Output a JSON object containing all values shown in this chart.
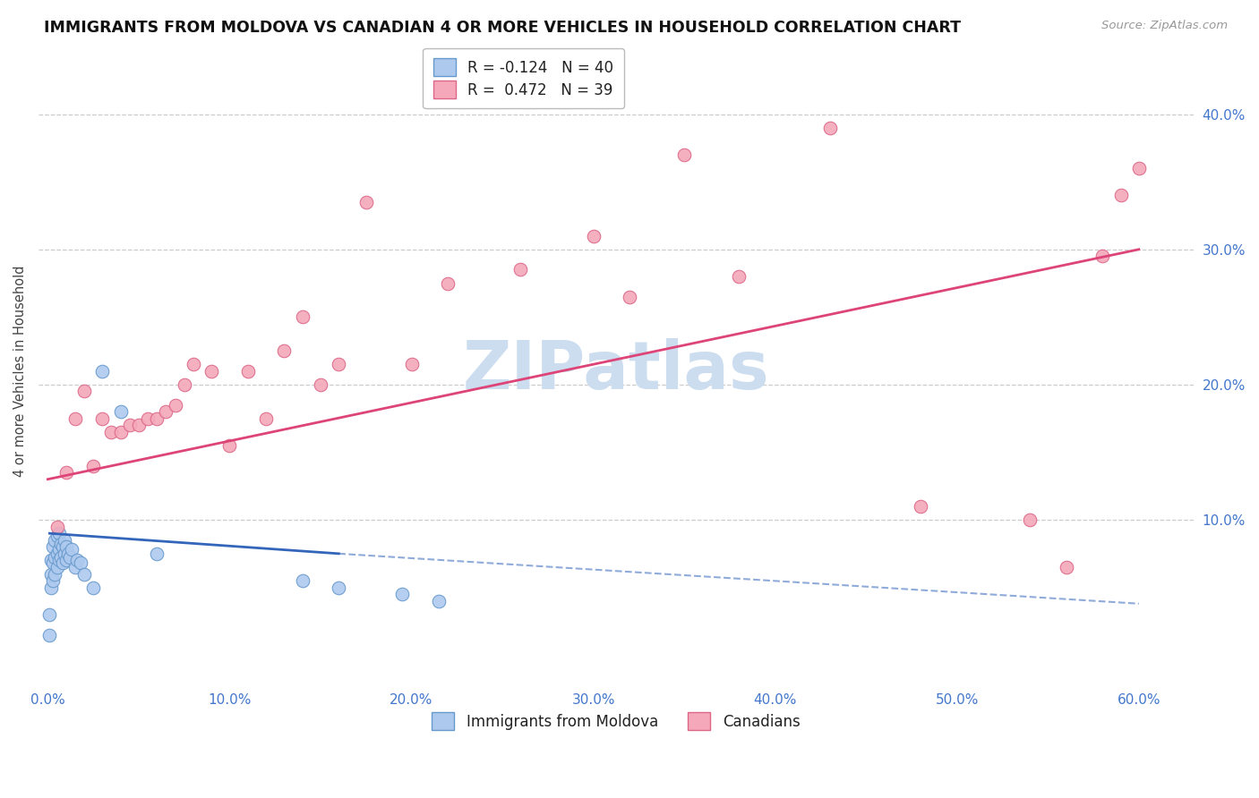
{
  "title": "IMMIGRANTS FROM MOLDOVA VS CANADIAN 4 OR MORE VEHICLES IN HOUSEHOLD CORRELATION CHART",
  "source": "Source: ZipAtlas.com",
  "ylabel": "4 or more Vehicles in Household",
  "xlim": [
    -0.005,
    0.63
  ],
  "ylim": [
    -0.025,
    0.445
  ],
  "xtick_vals": [
    0.0,
    0.1,
    0.2,
    0.3,
    0.4,
    0.5,
    0.6
  ],
  "xtick_labels": [
    "0.0%",
    "10.0%",
    "20.0%",
    "30.0%",
    "40.0%",
    "50.0%",
    "60.0%"
  ],
  "ytick_vals": [
    0.1,
    0.2,
    0.3,
    0.4
  ],
  "ytick_labels": [
    "10.0%",
    "20.0%",
    "30.0%",
    "40.0%"
  ],
  "blue_R": "-0.124",
  "blue_N": "40",
  "pink_R": "0.472",
  "pink_N": "39",
  "blue_color": "#aec9ee",
  "pink_color": "#f4a8ba",
  "blue_edge_color": "#6699cc",
  "pink_edge_color": "#dd6688",
  "blue_line_color": "#3366bb",
  "pink_line_color": "#dd4477",
  "watermark": "ZIPatlas",
  "watermark_color": "#ccddf0",
  "blue_scatter_x": [
    0.001,
    0.001,
    0.002,
    0.002,
    0.002,
    0.003,
    0.003,
    0.003,
    0.004,
    0.004,
    0.004,
    0.005,
    0.005,
    0.005,
    0.006,
    0.006,
    0.006,
    0.007,
    0.007,
    0.008,
    0.008,
    0.009,
    0.009,
    0.01,
    0.01,
    0.011,
    0.012,
    0.013,
    0.015,
    0.016,
    0.018,
    0.02,
    0.025,
    0.03,
    0.04,
    0.06,
    0.14,
    0.16,
    0.195,
    0.215
  ],
  "blue_scatter_y": [
    0.015,
    0.03,
    0.05,
    0.06,
    0.07,
    0.055,
    0.068,
    0.08,
    0.06,
    0.072,
    0.085,
    0.065,
    0.075,
    0.088,
    0.07,
    0.078,
    0.09,
    0.072,
    0.082,
    0.068,
    0.08,
    0.075,
    0.085,
    0.07,
    0.08,
    0.075,
    0.072,
    0.078,
    0.065,
    0.07,
    0.068,
    0.06,
    0.05,
    0.21,
    0.18,
    0.075,
    0.055,
    0.05,
    0.045,
    0.04
  ],
  "pink_scatter_x": [
    0.005,
    0.01,
    0.015,
    0.02,
    0.025,
    0.03,
    0.035,
    0.04,
    0.045,
    0.05,
    0.055,
    0.06,
    0.065,
    0.07,
    0.075,
    0.08,
    0.09,
    0.1,
    0.11,
    0.12,
    0.13,
    0.14,
    0.15,
    0.16,
    0.175,
    0.2,
    0.22,
    0.26,
    0.3,
    0.32,
    0.35,
    0.38,
    0.43,
    0.48,
    0.54,
    0.56,
    0.58,
    0.59,
    0.6
  ],
  "pink_scatter_y": [
    0.095,
    0.135,
    0.175,
    0.195,
    0.14,
    0.175,
    0.165,
    0.165,
    0.17,
    0.17,
    0.175,
    0.175,
    0.18,
    0.185,
    0.2,
    0.215,
    0.21,
    0.155,
    0.21,
    0.175,
    0.225,
    0.25,
    0.2,
    0.215,
    0.335,
    0.215,
    0.275,
    0.285,
    0.31,
    0.265,
    0.37,
    0.28,
    0.39,
    0.11,
    0.1,
    0.065,
    0.295,
    0.34,
    0.36
  ],
  "pink_line_x0": 0.0,
  "pink_line_y0": 0.13,
  "pink_line_x1": 0.6,
  "pink_line_y1": 0.3,
  "blue_line_solid_x0": 0.001,
  "blue_line_solid_x1": 0.16,
  "blue_line_y0": 0.09,
  "blue_line_y1": 0.075,
  "blue_line_dashed_x1": 0.6,
  "blue_line_dashed_y1": 0.038
}
